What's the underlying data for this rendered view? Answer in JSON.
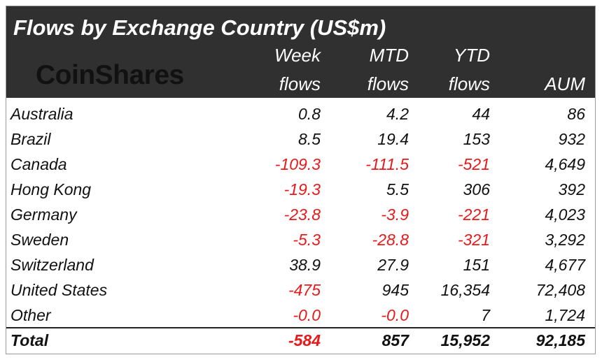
{
  "title": "Flows by Exchange Country (US$m)",
  "logo_text": "CoinShares",
  "columns": [
    {
      "line1": "Week",
      "line2": "flows"
    },
    {
      "line1": "MTD",
      "line2": "flows"
    },
    {
      "line1": "YTD",
      "line2": "flows"
    },
    {
      "line1": "",
      "line2": "AUM"
    }
  ],
  "colors": {
    "header_bg": "#303030",
    "negative": "#e8191a",
    "text": "#111111"
  },
  "rows": [
    {
      "country": "Australia",
      "week": "0.8",
      "mtd": "4.2",
      "ytd": "44",
      "aum": "86"
    },
    {
      "country": "Brazil",
      "week": "8.5",
      "mtd": "19.4",
      "ytd": "153",
      "aum": "932"
    },
    {
      "country": "Canada",
      "week": "-109.3",
      "mtd": "-111.5",
      "ytd": "-521",
      "aum": "4,649"
    },
    {
      "country": "Hong Kong",
      "week": "-19.3",
      "mtd": "5.5",
      "ytd": "306",
      "aum": "392"
    },
    {
      "country": "Germany",
      "week": "-23.8",
      "mtd": "-3.9",
      "ytd": "-221",
      "aum": "4,023"
    },
    {
      "country": "Sweden",
      "week": "-5.3",
      "mtd": "-28.8",
      "ytd": "-321",
      "aum": "3,292"
    },
    {
      "country": "Switzerland",
      "week": "38.9",
      "mtd": "27.9",
      "ytd": "151",
      "aum": "4,677"
    },
    {
      "country": "United States",
      "week": "-475",
      "mtd": "945",
      "ytd": "16,354",
      "aum": "72,408"
    },
    {
      "country": "Other",
      "week": "-0.0",
      "mtd": "-0.0",
      "ytd": "7",
      "aum": "1,724"
    }
  ],
  "total": {
    "country": "Total",
    "week": "-584",
    "mtd": "857",
    "ytd": "15,952",
    "aum": "92,185"
  },
  "chart_data": {
    "type": "table",
    "title": "Flows by Exchange Country (US$m)",
    "columns": [
      "Week flows",
      "MTD flows",
      "YTD flows",
      "AUM"
    ],
    "categories": [
      "Australia",
      "Brazil",
      "Canada",
      "Hong Kong",
      "Germany",
      "Sweden",
      "Switzerland",
      "United States",
      "Other",
      "Total"
    ],
    "series": [
      {
        "name": "Week flows",
        "values": [
          0.8,
          8.5,
          -109.3,
          -19.3,
          -23.8,
          -5.3,
          38.9,
          -475,
          -0.0,
          -584
        ]
      },
      {
        "name": "MTD flows",
        "values": [
          4.2,
          19.4,
          -111.5,
          5.5,
          -3.9,
          -28.8,
          27.9,
          945,
          -0.0,
          857
        ]
      },
      {
        "name": "YTD flows",
        "values": [
          44,
          153,
          -521,
          306,
          -221,
          -321,
          151,
          16354,
          7,
          15952
        ]
      },
      {
        "name": "AUM",
        "values": [
          86,
          932,
          4649,
          392,
          4023,
          3292,
          4677,
          72408,
          1724,
          92185
        ]
      }
    ]
  }
}
